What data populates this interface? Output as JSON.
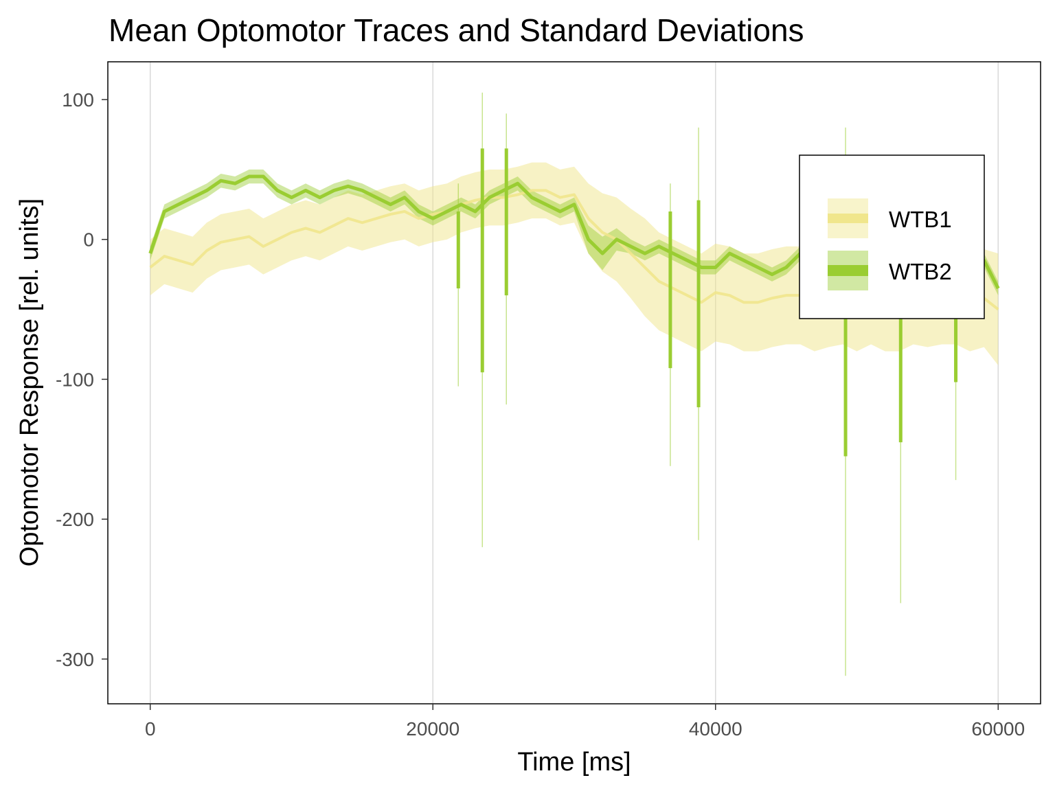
{
  "chart_data": {
    "type": "line",
    "title": "Mean Optomotor Traces and Standard Deviations",
    "xlabel": "Time [ms]",
    "ylabel": "Optomotor Response [rel. units]",
    "xlim": [
      -3000,
      63000
    ],
    "ylim": [
      -332,
      127
    ],
    "x_ticks": [
      0,
      20000,
      40000,
      60000
    ],
    "x_tick_labels": [
      "0",
      "20000",
      "40000",
      "60000"
    ],
    "y_ticks": [
      100,
      0,
      -100,
      -200,
      -300
    ],
    "y_tick_labels": [
      "100",
      "0",
      "-100",
      "-200",
      "-300"
    ],
    "grid": {
      "vertical": true,
      "horizontal": false
    },
    "legend": {
      "position": "right",
      "entries": [
        "WTB1",
        "WTB2"
      ]
    },
    "x": [
      0,
      1000,
      2000,
      3000,
      4000,
      5000,
      6000,
      7000,
      8000,
      9000,
      10000,
      11000,
      12000,
      13000,
      14000,
      15000,
      16000,
      17000,
      18000,
      19000,
      20000,
      21000,
      22000,
      23000,
      24000,
      25000,
      26000,
      27000,
      28000,
      29000,
      30000,
      31000,
      32000,
      33000,
      34000,
      35000,
      36000,
      37000,
      38000,
      39000,
      40000,
      41000,
      42000,
      43000,
      44000,
      45000,
      46000,
      47000,
      48000,
      49000,
      50000,
      51000,
      52000,
      53000,
      54000,
      55000,
      56000,
      57000,
      58000,
      59000,
      60000
    ],
    "series": [
      {
        "name": "WTB1",
        "color": "#f0e68c",
        "mean": [
          -20,
          -12,
          -15,
          -18,
          -8,
          -2,
          0,
          2,
          -5,
          0,
          5,
          8,
          5,
          10,
          15,
          12,
          15,
          18,
          20,
          15,
          18,
          20,
          25,
          28,
          30,
          30,
          32,
          35,
          35,
          30,
          32,
          15,
          5,
          0,
          -10,
          -20,
          -30,
          -35,
          -40,
          -45,
          -38,
          -40,
          -45,
          -45,
          -42,
          -40,
          -40,
          -45,
          -42,
          -40,
          -45,
          -40,
          -45,
          -45,
          -40,
          -42,
          -40,
          -40,
          -45,
          -42,
          -50
        ],
        "sd": [
          20,
          20,
          20,
          20,
          20,
          20,
          20,
          20,
          20,
          20,
          20,
          20,
          20,
          20,
          20,
          20,
          20,
          20,
          20,
          20,
          20,
          20,
          20,
          20,
          20,
          20,
          20,
          20,
          20,
          20,
          20,
          25,
          28,
          30,
          32,
          35,
          35,
          35,
          35,
          35,
          35,
          35,
          35,
          35,
          35,
          35,
          35,
          35,
          35,
          35,
          35,
          35,
          35,
          35,
          35,
          35,
          35,
          35,
          35,
          35,
          40
        ]
      },
      {
        "name": "WTB2",
        "color": "#9acd32",
        "mean": [
          -10,
          20,
          25,
          30,
          35,
          42,
          40,
          45,
          45,
          35,
          30,
          35,
          30,
          35,
          38,
          35,
          30,
          25,
          30,
          20,
          15,
          20,
          25,
          20,
          30,
          35,
          40,
          30,
          25,
          20,
          25,
          0,
          -10,
          0,
          -5,
          -10,
          -5,
          -10,
          -15,
          -20,
          -20,
          -10,
          -15,
          -20,
          -25,
          -20,
          -10,
          -15,
          -20,
          -15,
          -10,
          -20,
          -15,
          -10,
          -15,
          -20,
          -15,
          -10,
          -20,
          -15,
          -35
        ],
        "sd": [
          5,
          5,
          5,
          5,
          5,
          5,
          5,
          5,
          5,
          5,
          5,
          5,
          5,
          5,
          5,
          5,
          5,
          5,
          5,
          5,
          5,
          5,
          5,
          5,
          5,
          5,
          5,
          5,
          5,
          5,
          5,
          10,
          12,
          8,
          5,
          5,
          5,
          5,
          5,
          5,
          5,
          5,
          5,
          5,
          5,
          5,
          5,
          5,
          5,
          5,
          5,
          5,
          5,
          5,
          5,
          5,
          5,
          5,
          5,
          5,
          5
        ],
        "spikes": [
          {
            "x": 21800,
            "mean_min": -35,
            "mean_max": 20,
            "sd_min": -105,
            "sd_max": 40
          },
          {
            "x": 23500,
            "mean_min": -95,
            "mean_max": 65,
            "sd_min": -220,
            "sd_max": 105
          },
          {
            "x": 25200,
            "mean_min": -40,
            "mean_max": 65,
            "sd_min": -118,
            "sd_max": 90
          },
          {
            "x": 36800,
            "mean_min": -92,
            "mean_max": 20,
            "sd_min": -162,
            "sd_max": 40
          },
          {
            "x": 38800,
            "mean_min": -120,
            "mean_max": 28,
            "sd_min": -215,
            "sd_max": 80
          },
          {
            "x": 49200,
            "mean_min": -155,
            "mean_max": -20,
            "sd_min": -312,
            "sd_max": 80
          },
          {
            "x": 53100,
            "mean_min": -145,
            "mean_max": -20,
            "sd_min": -260,
            "sd_max": 10
          },
          {
            "x": 57000,
            "mean_min": -102,
            "mean_max": -20,
            "sd_min": -172,
            "sd_max": 10
          }
        ]
      }
    ]
  }
}
